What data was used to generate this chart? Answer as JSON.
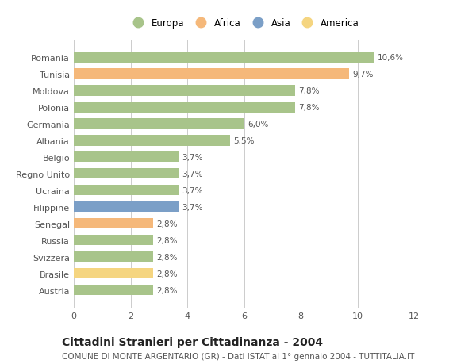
{
  "categories": [
    "Austria",
    "Brasile",
    "Svizzera",
    "Russia",
    "Senegal",
    "Filippine",
    "Ucraina",
    "Regno Unito",
    "Belgio",
    "Albania",
    "Germania",
    "Polonia",
    "Moldova",
    "Tunisia",
    "Romania"
  ],
  "values": [
    2.8,
    2.8,
    2.8,
    2.8,
    2.8,
    3.7,
    3.7,
    3.7,
    3.7,
    5.5,
    6.0,
    7.8,
    7.8,
    9.7,
    10.6
  ],
  "colors": [
    "#a8c48a",
    "#f5d580",
    "#a8c48a",
    "#a8c48a",
    "#f5b87a",
    "#7b9fc7",
    "#a8c48a",
    "#a8c48a",
    "#a8c48a",
    "#a8c48a",
    "#a8c48a",
    "#a8c48a",
    "#a8c48a",
    "#f5b87a",
    "#a8c48a"
  ],
  "labels": [
    "2,8%",
    "2,8%",
    "2,8%",
    "2,8%",
    "2,8%",
    "3,7%",
    "3,7%",
    "3,7%",
    "3,7%",
    "5,5%",
    "6,0%",
    "7,8%",
    "7,8%",
    "9,7%",
    "10,6%"
  ],
  "legend": [
    {
      "label": "Europa",
      "color": "#a8c48a"
    },
    {
      "label": "Africa",
      "color": "#f5b87a"
    },
    {
      "label": "Asia",
      "color": "#7b9fc7"
    },
    {
      "label": "America",
      "color": "#f5d580"
    }
  ],
  "xlim": [
    0,
    12
  ],
  "xticks": [
    0,
    2,
    4,
    6,
    8,
    10,
    12
  ],
  "title": "Cittadini Stranieri per Cittadinanza - 2004",
  "subtitle": "COMUNE DI MONTE ARGENTARIO (GR) - Dati ISTAT al 1° gennaio 2004 - TUTTITALIA.IT",
  "bg_color": "#ffffff",
  "grid_color": "#cccccc",
  "bar_height": 0.65,
  "label_fontsize": 7.5,
  "tick_fontsize": 8,
  "title_fontsize": 10,
  "subtitle_fontsize": 7.5
}
